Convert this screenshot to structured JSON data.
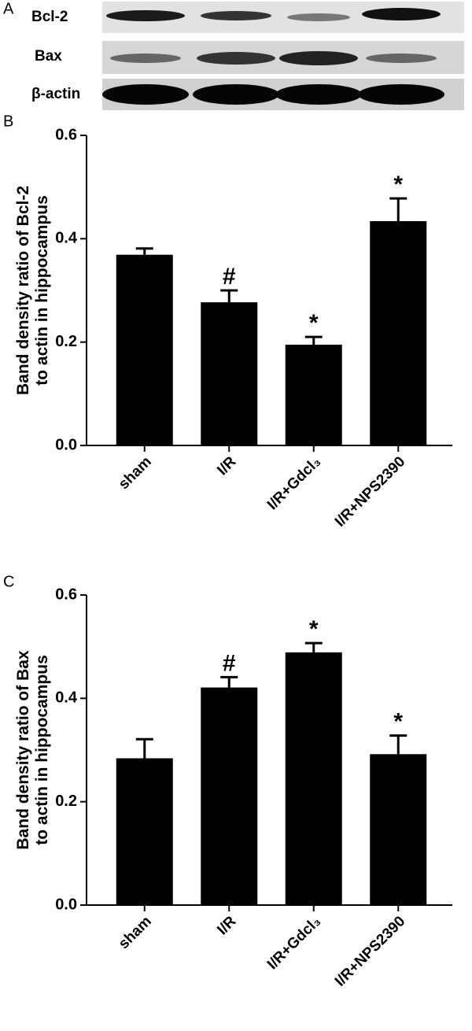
{
  "blot": {
    "panel_label": "A",
    "rows": [
      "Bcl-2",
      "Bax",
      "β-actin"
    ]
  },
  "chart_data": [
    {
      "type": "bar",
      "panel_label": "B",
      "ylabel": [
        "Band density ratio of Bcl-2",
        "to actin in hippocampus"
      ],
      "categories": [
        "sham",
        "I/R",
        "I/R+Gdcl₃",
        "I/R+NPS2390"
      ],
      "values": [
        0.369,
        0.277,
        0.195,
        0.434
      ],
      "errors": [
        0.012,
        0.023,
        0.015,
        0.044
      ],
      "annotations": [
        null,
        "#",
        "*",
        "*"
      ],
      "color": "#000000",
      "ylim": [
        0,
        0.6
      ],
      "yticks": [
        {
          "value": 0,
          "label": "0.0"
        },
        0.2,
        0.4,
        0.6
      ]
    },
    {
      "type": "bar",
      "panel_label": "C",
      "ylabel": [
        "Band density ratio of Bax",
        "to actin in hippocampus"
      ],
      "categories": [
        "sham",
        "I/R",
        "I/R+Gdcl₃",
        "I/R+NPS2390"
      ],
      "values": [
        0.284,
        0.421,
        0.489,
        0.292
      ],
      "errors": [
        0.037,
        0.02,
        0.018,
        0.036
      ],
      "annotations": [
        null,
        "#",
        "*",
        "*"
      ],
      "color": "#000000",
      "ylim": [
        0,
        0.6
      ],
      "yticks": [
        {
          "value": 0,
          "label": "0.0"
        },
        0.2,
        0.4,
        0.6
      ]
    }
  ]
}
